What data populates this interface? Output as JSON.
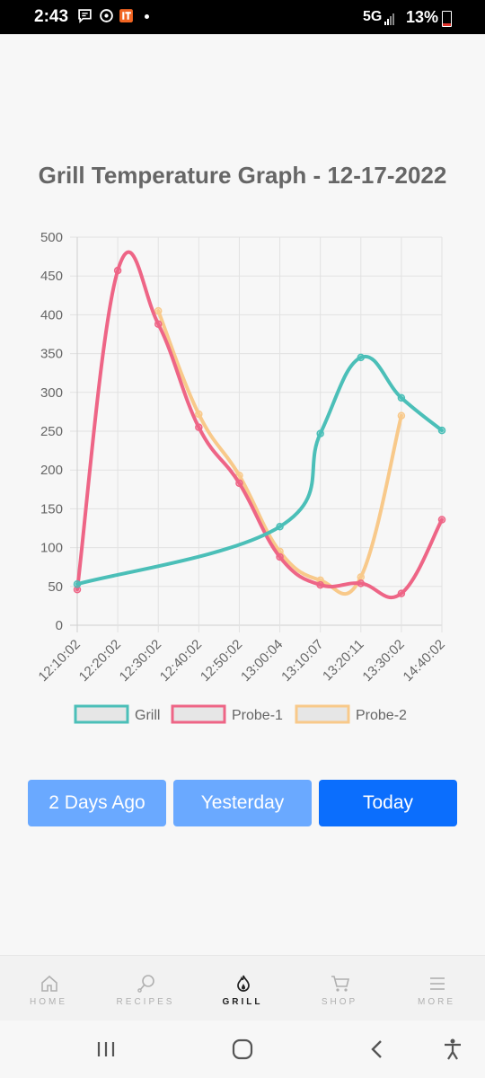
{
  "status_bar": {
    "time": "2:43",
    "network": "5G",
    "battery": "13%",
    "icons": [
      "message-icon",
      "sync-icon",
      "app-icon"
    ]
  },
  "page": {
    "title": "Grill Temperature Graph - 12-17-2022"
  },
  "chart_data": {
    "type": "line",
    "title": "Grill Temperature Graph - 12-17-2022",
    "xlabel": "",
    "ylabel": "",
    "categories": [
      "12:10:02",
      "12:20:02",
      "12:30:02",
      "12:40:02",
      "12:50:02",
      "13:00:04",
      "13:10:07",
      "13:20:11",
      "13:30:02",
      "14:40:02"
    ],
    "ylim": [
      0,
      500
    ],
    "yticks": [
      0,
      50,
      100,
      150,
      200,
      250,
      300,
      350,
      400,
      450,
      500
    ],
    "grid": true,
    "legend": "bottom",
    "series": [
      {
        "name": "Grill",
        "color": "#4bbfb8",
        "values": [
          53,
          null,
          null,
          null,
          null,
          127,
          247,
          345,
          293,
          251
        ]
      },
      {
        "name": "Probe-1",
        "color": "#ee6586",
        "values": [
          46,
          457,
          388,
          255,
          183,
          88,
          52,
          54,
          41,
          136
        ]
      },
      {
        "name": "Probe-2",
        "color": "#f8c98a",
        "values": [
          null,
          null,
          405,
          272,
          193,
          95,
          58,
          62,
          270,
          null
        ]
      }
    ]
  },
  "buttons": {
    "two_days": "2 Days Ago",
    "yesterday": "Yesterday",
    "today": "Today"
  },
  "nav": {
    "items": [
      {
        "label": "HOME",
        "icon": "home-icon"
      },
      {
        "label": "RECIPES",
        "icon": "drumstick-icon"
      },
      {
        "label": "GRILL",
        "icon": "flame-icon",
        "active": true
      },
      {
        "label": "SHOP",
        "icon": "cart-icon"
      },
      {
        "label": "MORE",
        "icon": "menu-icon"
      }
    ]
  }
}
